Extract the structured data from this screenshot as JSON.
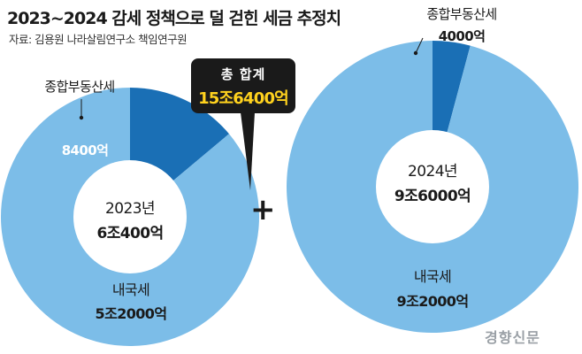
{
  "header": {
    "title": "2023~2024 감세 정책으로 덜 걷힌 세금 추정치",
    "source": "자료: 김용원 나라살림연구소 책임연구원"
  },
  "total": {
    "label": "총 합계",
    "value": "15조6400억"
  },
  "plus_sign": "+",
  "watermark": "경향신문",
  "chart_data": [
    {
      "type": "pie",
      "donut": true,
      "center_label": {
        "year": "2023년",
        "total": "6조400억"
      },
      "slices": [
        {
          "name": "종합부동산세",
          "value": 8400,
          "value_label": "8400억",
          "color": "#1a6fb5"
        },
        {
          "name": "내국세",
          "value": 52000,
          "value_label": "5조2000억",
          "color": "#7cbde8"
        }
      ]
    },
    {
      "type": "pie",
      "donut": true,
      "center_label": {
        "year": "2024년",
        "total": "9조6000억"
      },
      "slices": [
        {
          "name": "종합부동산세",
          "value": 4000,
          "value_label": "4000억",
          "color": "#1a6fb5"
        },
        {
          "name": "내국세",
          "value": 92000,
          "value_label": "9조2000억",
          "color": "#7cbde8"
        }
      ]
    }
  ]
}
